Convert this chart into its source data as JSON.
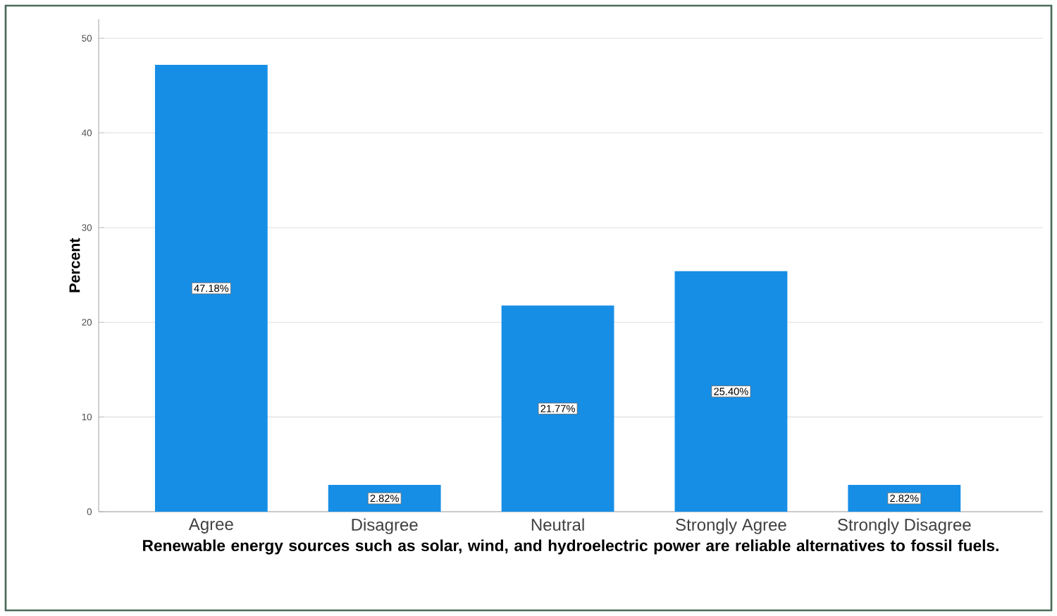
{
  "chart_data": {
    "type": "bar",
    "xlabel": "Renewable energy sources such as solar, wind, and hydroelectric power are reliable alternatives to fossil fuels.",
    "ylabel": "Percent",
    "categories": [
      "Agree",
      "Disagree",
      "Neutral",
      "Strongly Agree",
      "Strongly Disagree"
    ],
    "values": [
      47.18,
      2.82,
      21.77,
      25.4,
      2.82
    ],
    "value_labels": [
      "47.18%",
      "2.82%",
      "21.77%",
      "25.40%",
      "2.82%"
    ],
    "color": "#168ee6",
    "ylim": [
      0,
      52
    ],
    "yticks": [
      0,
      10,
      20,
      30,
      40,
      50
    ],
    "grid": "y"
  }
}
